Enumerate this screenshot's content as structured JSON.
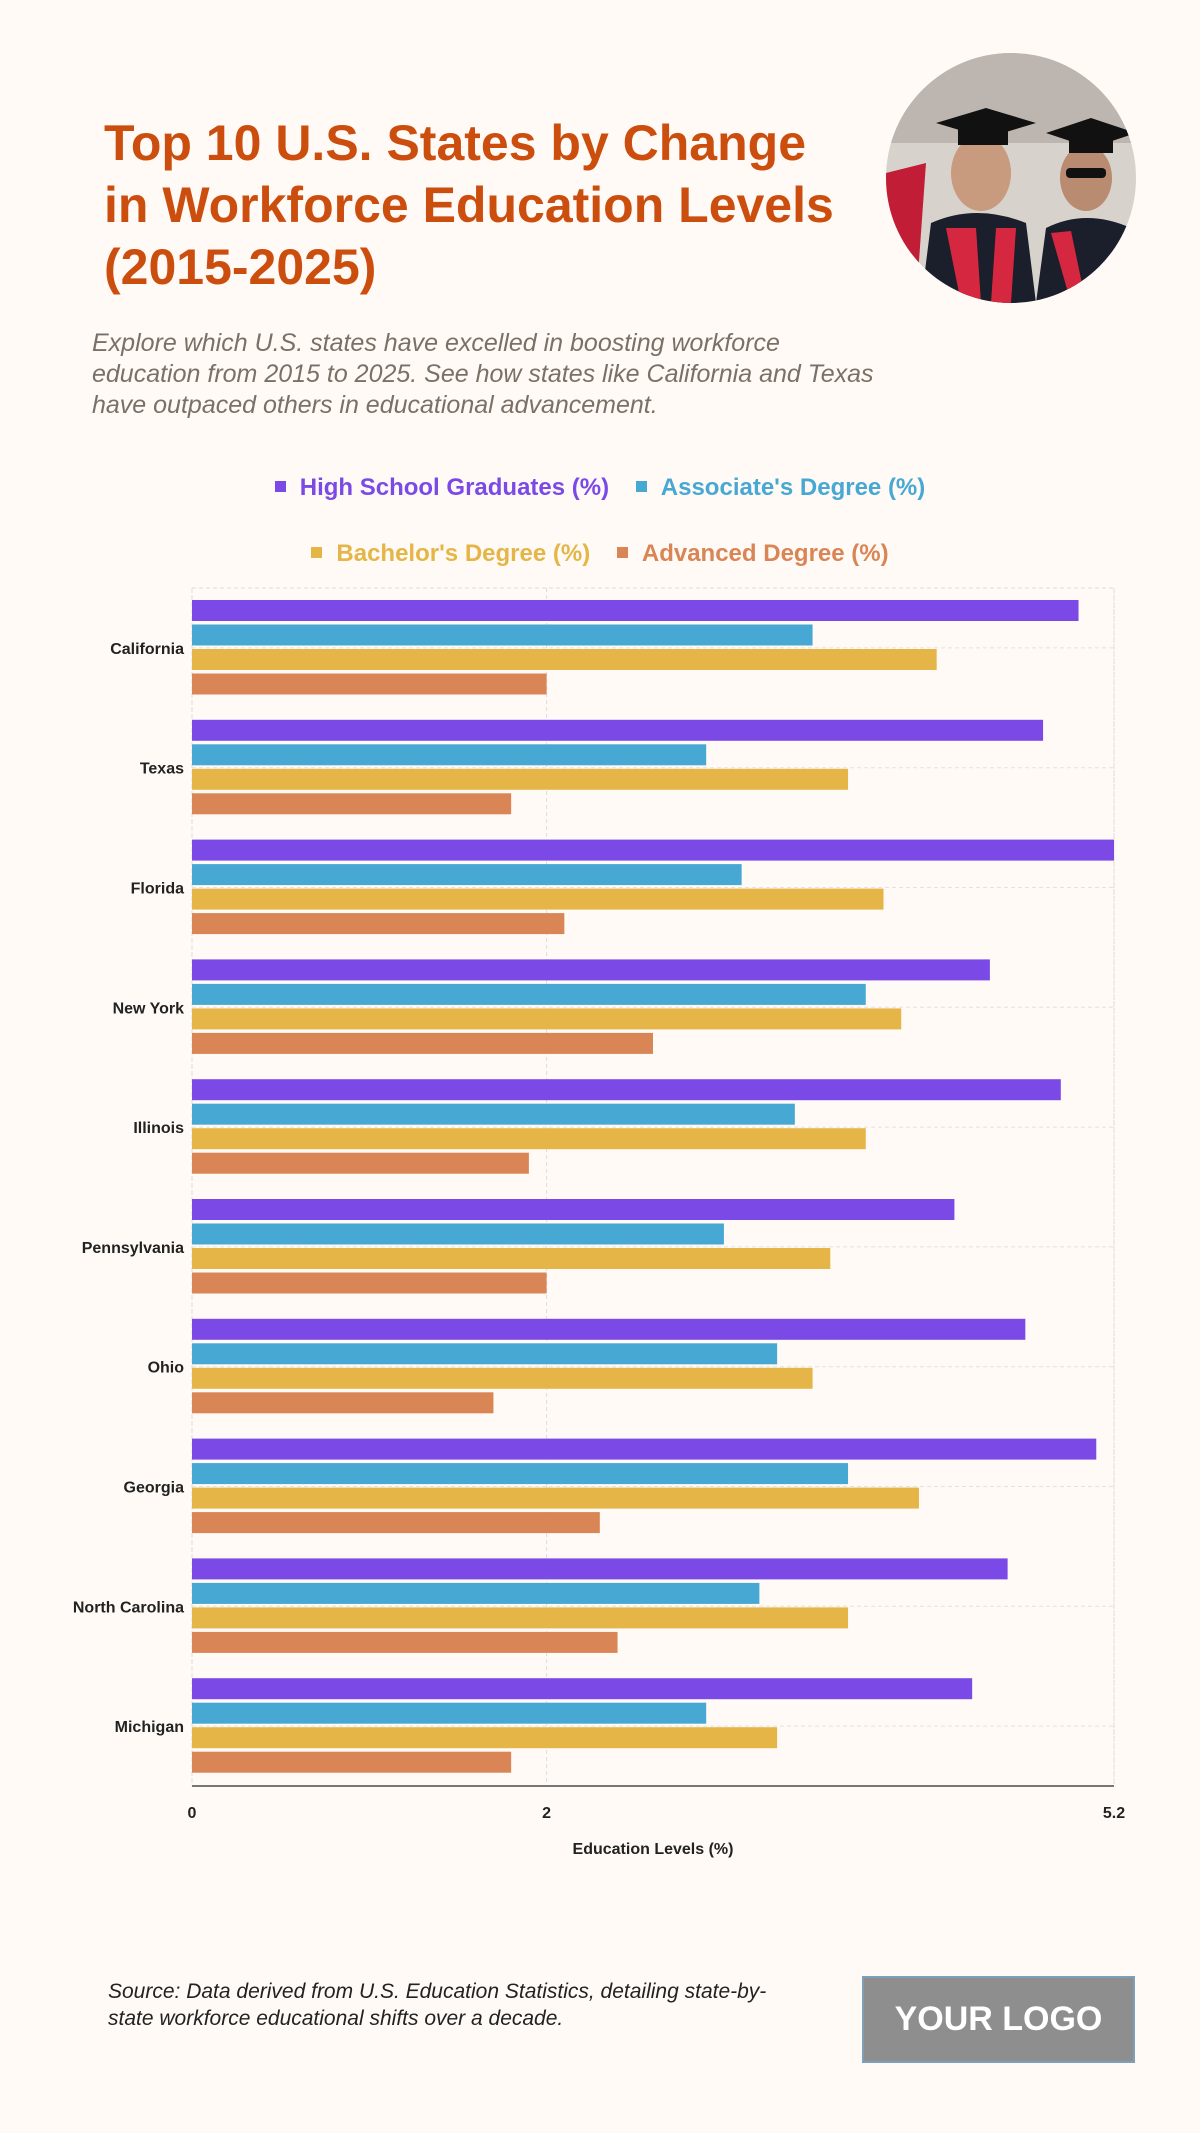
{
  "title": "Top 10 U.S. States by Change in Workforce Education Levels (2015-2025)",
  "subtitle": "Explore which U.S. states have excelled in boosting workforce education from 2015 to 2025. See how states like California and Texas have outpaced others in educational advancement.",
  "source": "Source: Data derived from U.S. Education Statistics, detailing state-by-state workforce educational shifts over a decade.",
  "logo": "YOUR LOGO",
  "chart_data": {
    "type": "bar",
    "orientation": "horizontal",
    "categories": [
      "California",
      "Texas",
      "Florida",
      "New York",
      "Illinois",
      "Pennsylvania",
      "Ohio",
      "Georgia",
      "North Carolina",
      "Michigan"
    ],
    "series": [
      {
        "name": "High School Graduates (%)",
        "color": "#7b4ae6",
        "values": [
          5.0,
          4.8,
          5.2,
          4.5,
          4.9,
          4.3,
          4.7,
          5.1,
          4.6,
          4.4
        ]
      },
      {
        "name": "Associate's Degree (%)",
        "color": "#47a8d4",
        "values": [
          3.5,
          2.9,
          3.1,
          3.8,
          3.4,
          3.0,
          3.3,
          3.7,
          3.2,
          2.9
        ]
      },
      {
        "name": "Bachelor's Degree (%)",
        "color": "#e5b647",
        "values": [
          4.2,
          3.7,
          3.9,
          4.0,
          3.8,
          3.6,
          3.5,
          4.1,
          3.7,
          3.3
        ]
      },
      {
        "name": "Advanced Degree (%)",
        "color": "#d98555",
        "values": [
          2.0,
          1.8,
          2.1,
          2.6,
          1.9,
          2.0,
          1.7,
          2.3,
          2.4,
          1.8
        ]
      }
    ],
    "xlabel": "Education Levels (%)",
    "xlim": [
      0,
      5.2
    ],
    "xticks": [
      "0",
      "2",
      "5.2"
    ],
    "grid": true,
    "legend": "top"
  }
}
